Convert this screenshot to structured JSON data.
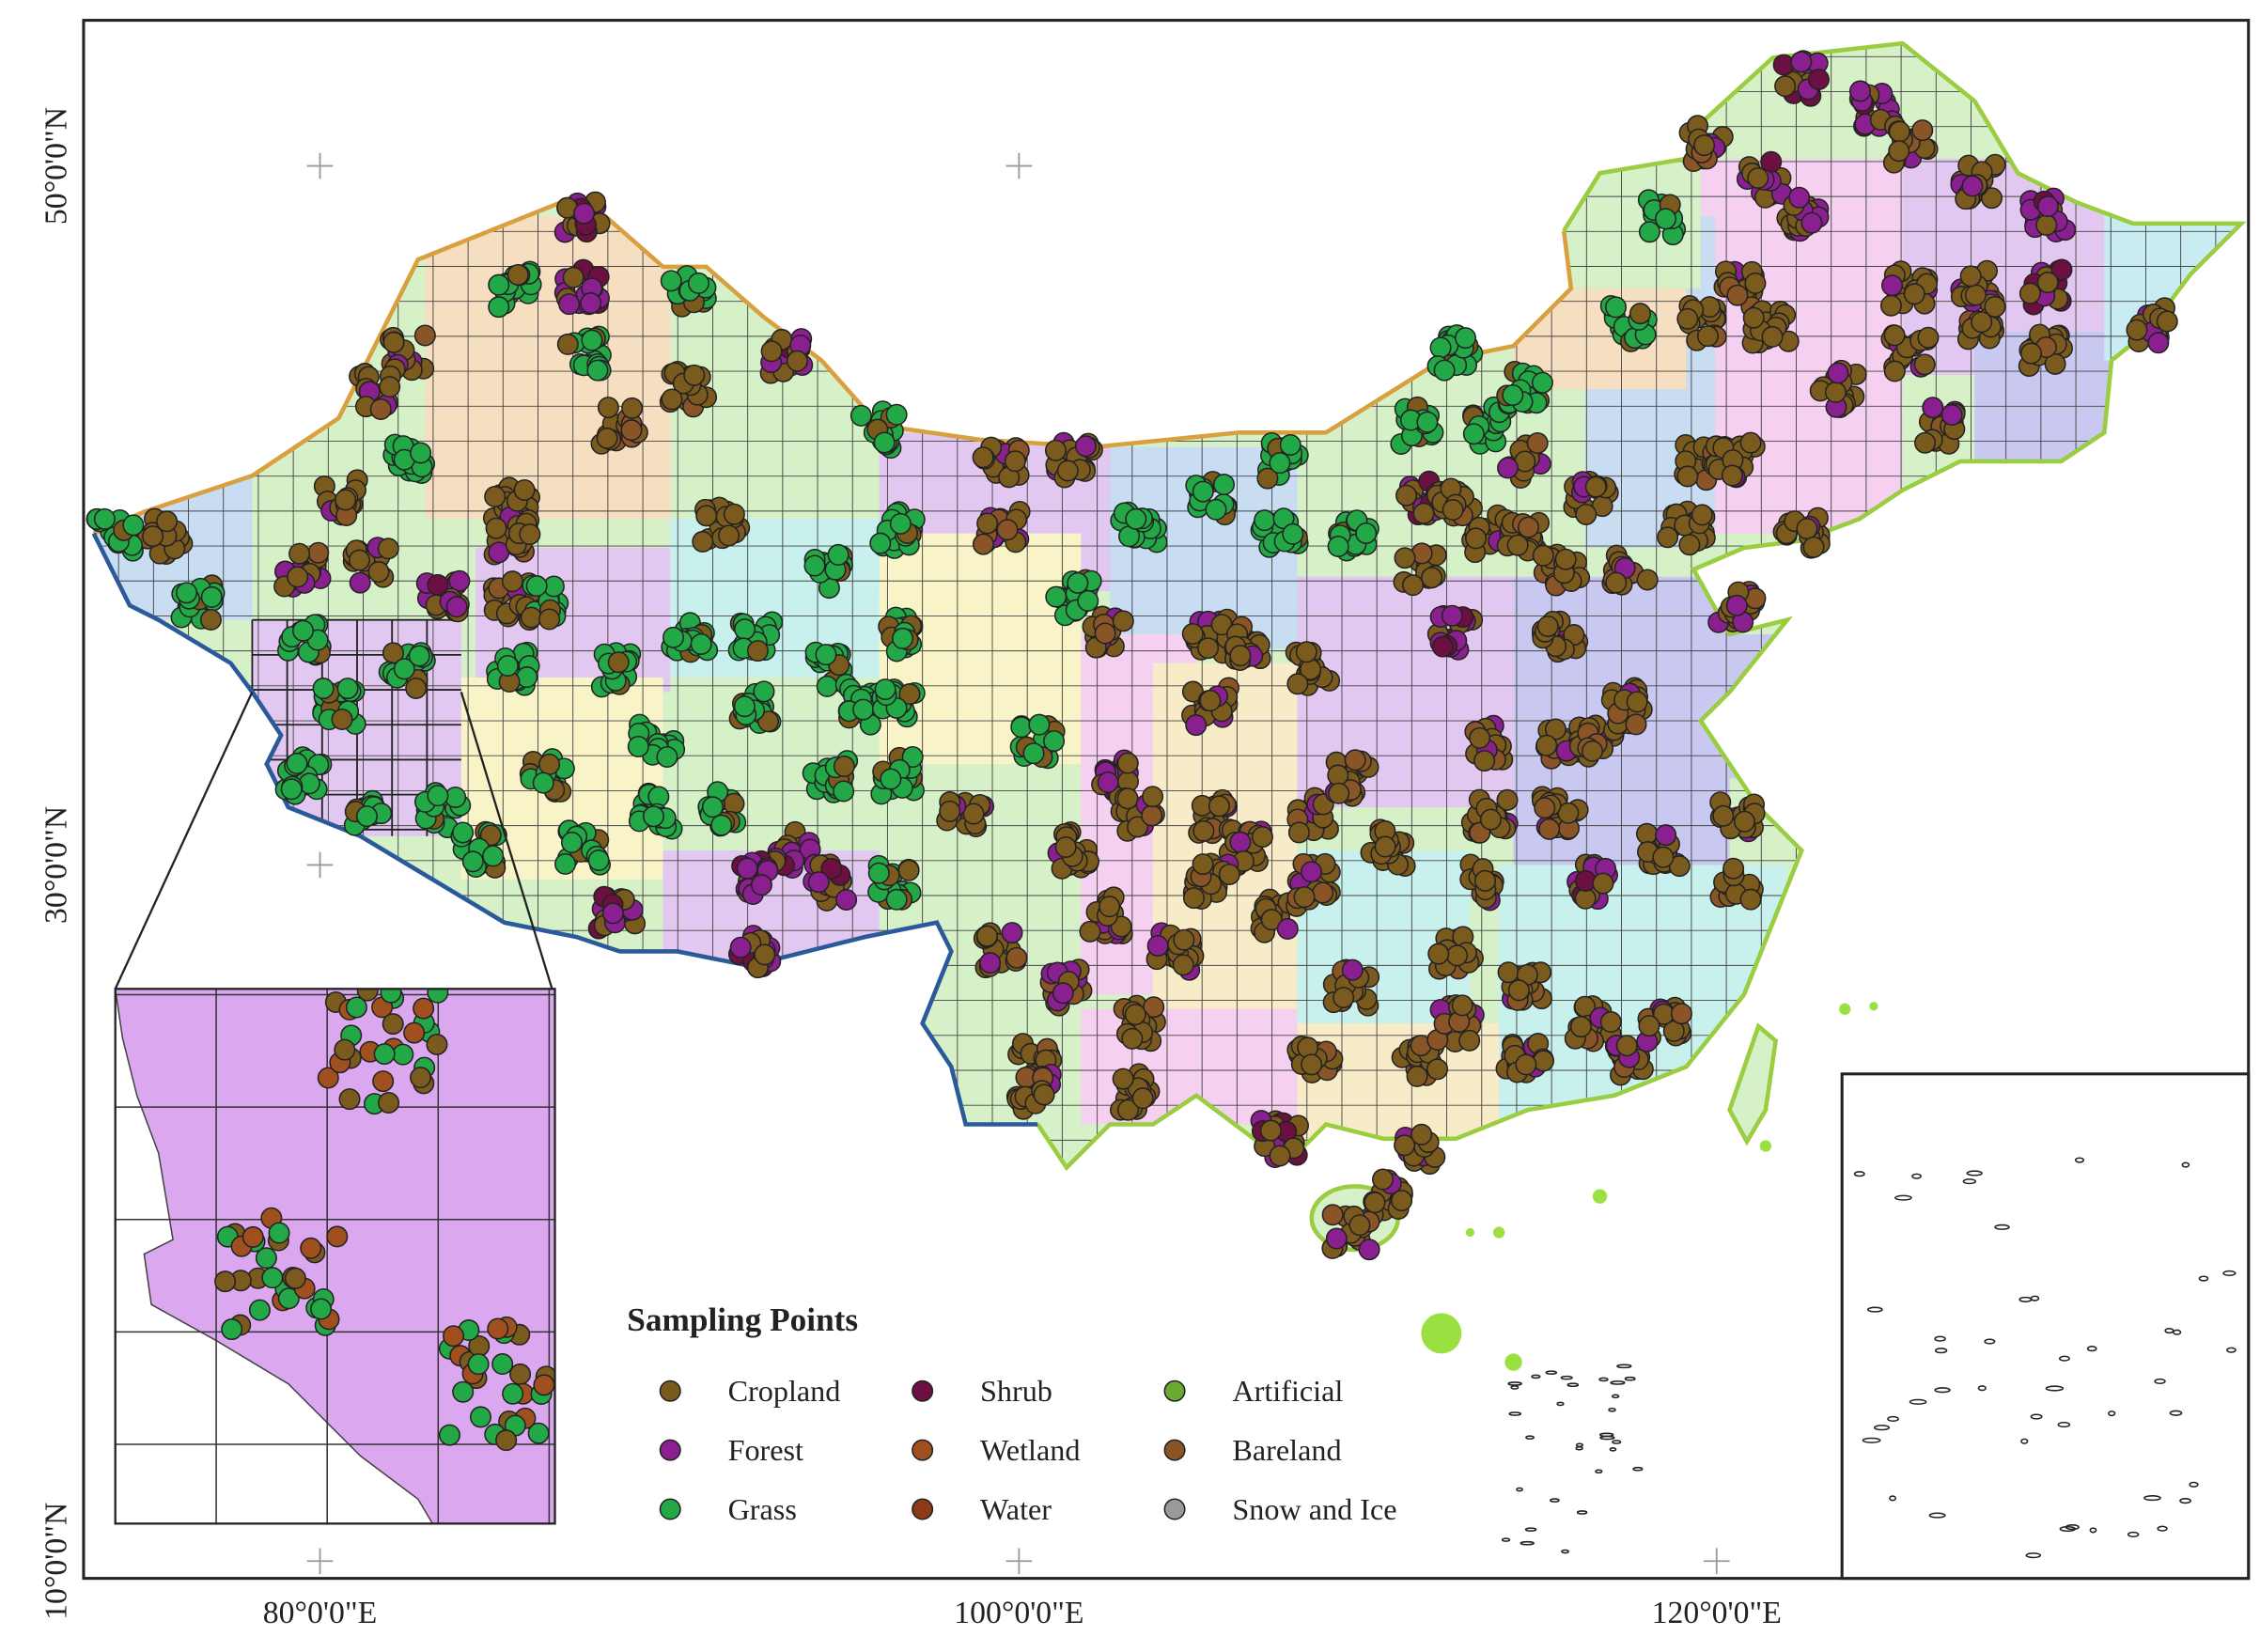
{
  "legend": {
    "title": "Sampling Points",
    "items": [
      {
        "label": "Cropland",
        "color": "#7b5a1e"
      },
      {
        "label": "Forest",
        "color": "#8a1f8f"
      },
      {
        "label": "Grass",
        "color": "#22a846"
      },
      {
        "label": "Shrub",
        "color": "#6b1040"
      },
      {
        "label": "Wetland",
        "color": "#a0501e"
      },
      {
        "label": "Water",
        "color": "#8b3a1a"
      },
      {
        "label": "Artificial",
        "color": "#6aaa30"
      },
      {
        "label": "Bareland",
        "color": "#8a5526"
      },
      {
        "label": "Snow and Ice",
        "color": "#999999"
      }
    ]
  },
  "axes": {
    "latitude_labels": [
      "50°0'0\"N",
      "30°0'0\"N",
      "10°0'0\"N"
    ],
    "longitude_labels": [
      "80°0'0\"E",
      "100°0'0\"E",
      "120°0'0\"E"
    ]
  }
}
